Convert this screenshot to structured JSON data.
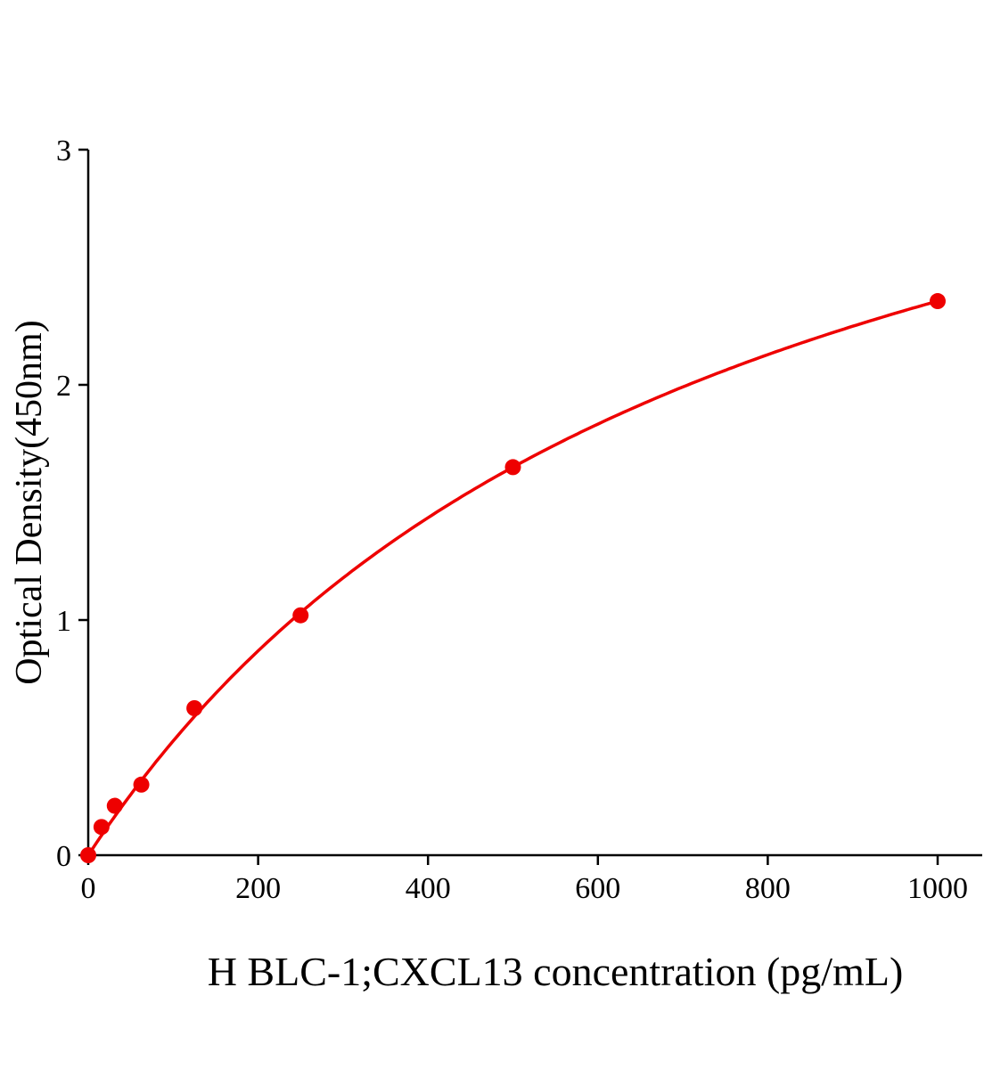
{
  "chart_data": {
    "type": "scatter",
    "title": "",
    "xlabel": "H BLC-1;CXCL13 concentration (pg/mL)",
    "ylabel": "Optical Density(450nm)",
    "xlim": [
      0,
      1050
    ],
    "ylim": [
      0,
      3
    ],
    "xticks": [
      0,
      200,
      400,
      600,
      800,
      1000
    ],
    "yticks": [
      0,
      1,
      2,
      3
    ],
    "grid": false,
    "legend": "none",
    "color": "#ee0000",
    "series": [
      {
        "x": [
          0,
          15.6,
          31.25,
          62.5,
          125,
          250,
          500,
          1000
        ],
        "y": [
          0.0,
          0.12,
          0.21,
          0.3,
          0.625,
          1.02,
          1.65,
          2.356
        ],
        "fit_curve": true
      }
    ]
  }
}
